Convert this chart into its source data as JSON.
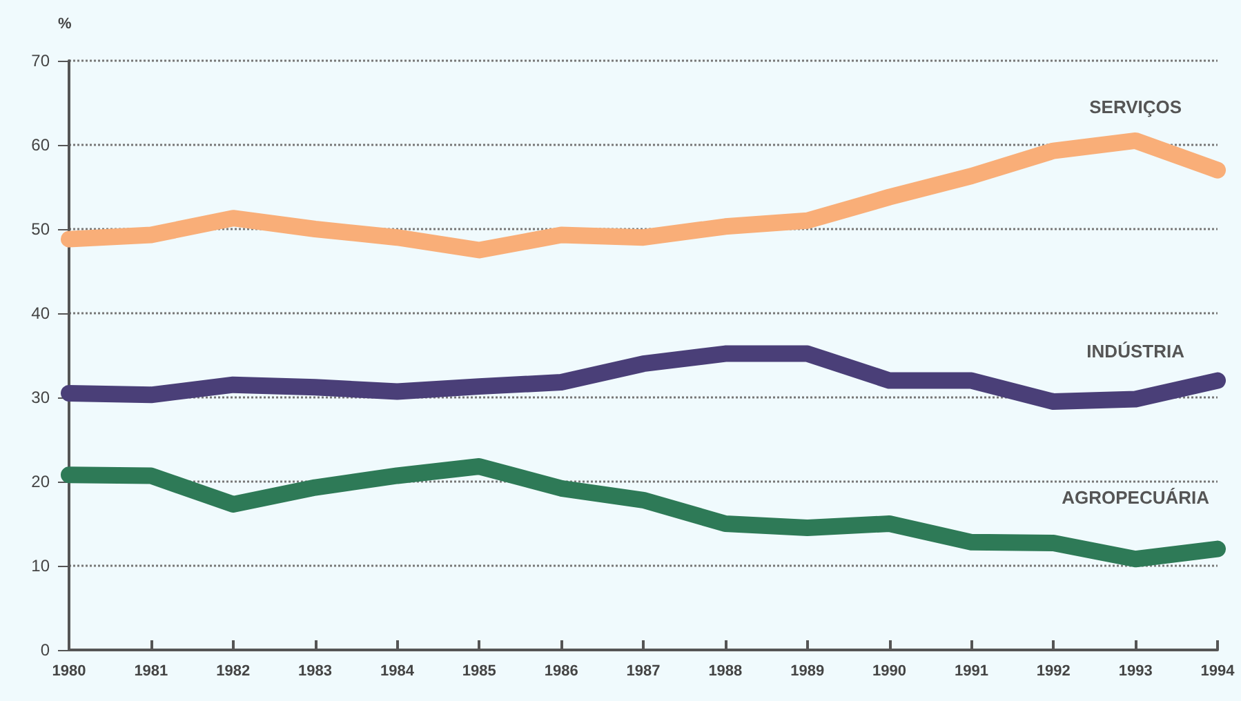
{
  "chart_data": {
    "type": "line",
    "ylabel": "%",
    "x": [
      1980,
      1981,
      1982,
      1983,
      1984,
      1985,
      1986,
      1987,
      1988,
      1989,
      1990,
      1991,
      1992,
      1993,
      1994
    ],
    "series": [
      {
        "name": "SERVIÇOS",
        "color": "#f9ae78",
        "values": [
          48.8,
          49.3,
          51.3,
          50,
          49,
          47.5,
          49.3,
          49,
          50.3,
          51,
          53.8,
          56.3,
          59.3,
          60.5,
          57
        ]
      },
      {
        "name": "INDÚSTRIA",
        "color": "#4a3f78",
        "values": [
          30.5,
          30.3,
          31.5,
          31.2,
          30.7,
          31.3,
          31.8,
          34,
          35.2,
          35.2,
          32,
          32,
          29.5,
          29.8,
          32
        ]
      },
      {
        "name": "AGROPECUÁRIA",
        "color": "#2e7a57",
        "values": [
          20.8,
          20.7,
          17.3,
          19.3,
          20.7,
          21.8,
          19.2,
          17.8,
          15,
          14.5,
          15,
          12.8,
          12.7,
          10.8,
          12
        ]
      }
    ],
    "xlim": [
      1980,
      1994
    ],
    "xticks": [
      1980,
      1981,
      1982,
      1983,
      1984,
      1985,
      1986,
      1987,
      1988,
      1989,
      1990,
      1991,
      1992,
      1993,
      1994
    ],
    "ylim": [
      0,
      70
    ],
    "yticks": [
      0,
      10,
      20,
      30,
      40,
      50,
      60,
      70
    ],
    "grid": "y",
    "legend": false,
    "marker": "none",
    "line_style": "solid"
  }
}
